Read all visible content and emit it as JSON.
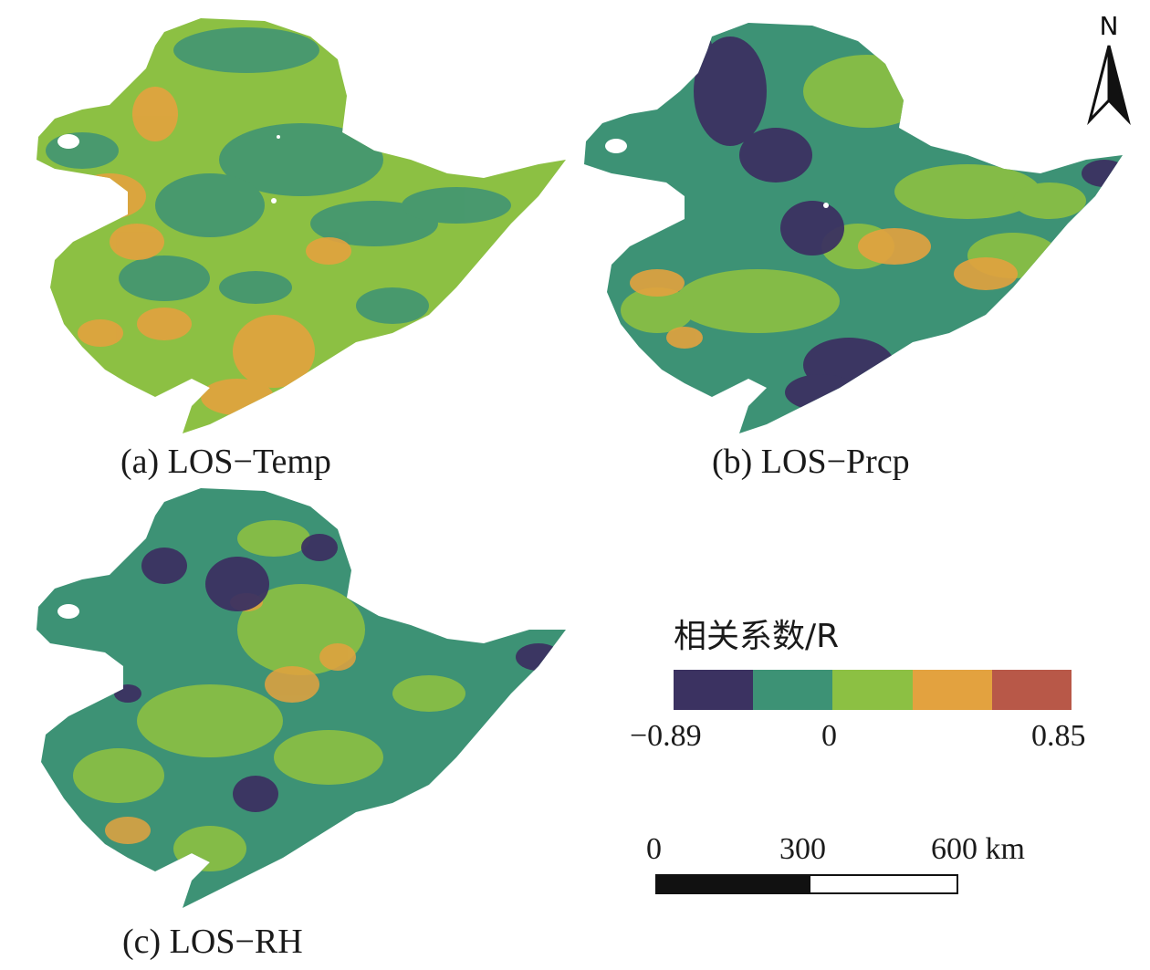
{
  "panels": [
    {
      "caption": "(a) LOS−Temp"
    },
    {
      "caption": "(b) LOS−Prcp"
    },
    {
      "caption": "(c) LOS−RH"
    }
  ],
  "legend": {
    "title": "相关系数/R",
    "classes": [
      "#3b3261",
      "#3d9275",
      "#8cc043",
      "#e3a23f",
      "#b85848"
    ],
    "min_label": "−0.89",
    "mid_label": "0",
    "max_label": "0.85"
  },
  "north_arrow": {
    "label": "N"
  },
  "scale_bar": {
    "labels": [
      "0",
      "300",
      "600 km"
    ]
  },
  "colors": {
    "dark_blue": "#3b3261",
    "teal": "#3d9275",
    "green": "#8cc043",
    "orange": "#e3a23f",
    "red": "#b85848"
  }
}
